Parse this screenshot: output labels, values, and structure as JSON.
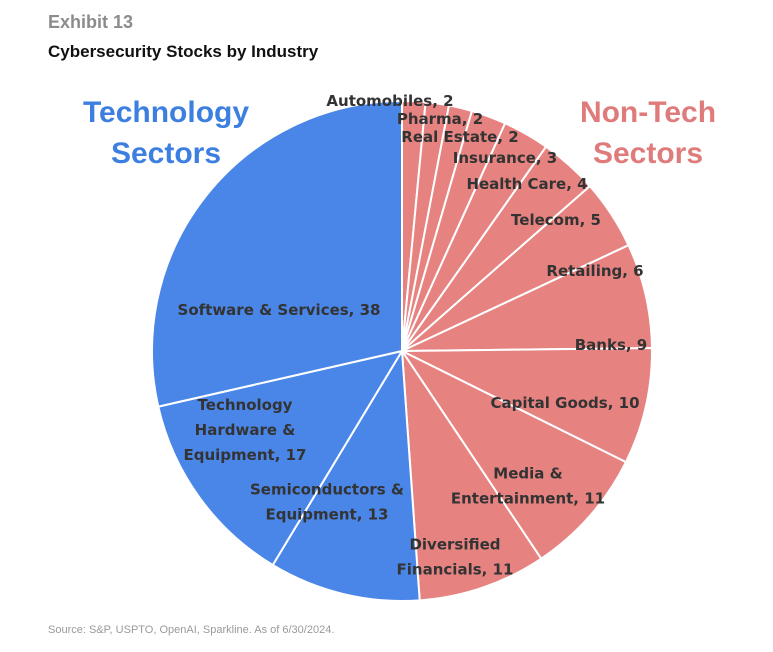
{
  "header": {
    "exhibit": "Exhibit 13",
    "title": "Cybersecurity Stocks by Industry"
  },
  "groups": {
    "tech": "Technology Sectors",
    "nontech": "Non-Tech Sectors"
  },
  "source": "Source: S&P, USPTO, OpenAI, Sparkline. As of 6/30/2024.",
  "colors": {
    "tech": "#4a86e8",
    "nontech": "#e68380",
    "separator": "#ffffff"
  },
  "chart_data": {
    "type": "pie",
    "title": "Cybersecurity Stocks by Industry",
    "start": "12 o'clock",
    "direction": "clockwise",
    "slices": [
      {
        "name": "Automobiles",
        "value": 2,
        "group": "nontech",
        "label": [
          "Automobiles, 2"
        ]
      },
      {
        "name": "Pharma",
        "value": 2,
        "group": "nontech",
        "label": [
          "Pharma, 2"
        ]
      },
      {
        "name": "Real Estate",
        "value": 2,
        "group": "nontech",
        "label": [
          "Real Estate, 2"
        ]
      },
      {
        "name": "Insurance",
        "value": 3,
        "group": "nontech",
        "label": [
          "Insurance, 3"
        ]
      },
      {
        "name": "Health Care",
        "value": 4,
        "group": "nontech",
        "label": [
          "Health Care, 4"
        ]
      },
      {
        "name": "Telecom",
        "value": 5,
        "group": "nontech",
        "label": [
          "Telecom, 5"
        ]
      },
      {
        "name": "Retailing",
        "value": 6,
        "group": "nontech",
        "label": [
          "Retailing, 6"
        ]
      },
      {
        "name": "Banks",
        "value": 9,
        "group": "nontech",
        "label": [
          "Banks, 9"
        ]
      },
      {
        "name": "Capital Goods",
        "value": 10,
        "group": "nontech",
        "label": [
          "Capital Goods, 10"
        ]
      },
      {
        "name": "Media & Entertainment",
        "value": 11,
        "group": "nontech",
        "label": [
          "Media &",
          "Entertainment, 11"
        ]
      },
      {
        "name": "Diversified Financials",
        "value": 11,
        "group": "nontech",
        "label": [
          "Diversified",
          "Financials, 11"
        ]
      },
      {
        "name": "Semiconductors & Equipment",
        "value": 13,
        "group": "tech",
        "label": [
          "Semiconductors &",
          "Equipment, 13"
        ]
      },
      {
        "name": "Technology Hardware & Equipment",
        "value": 17,
        "group": "tech",
        "label": [
          "Technology",
          "Hardware &",
          "Equipment, 17"
        ]
      },
      {
        "name": "Software & Services",
        "value": 38,
        "group": "tech",
        "label": [
          "Software & Services, 38"
        ]
      }
    ]
  }
}
